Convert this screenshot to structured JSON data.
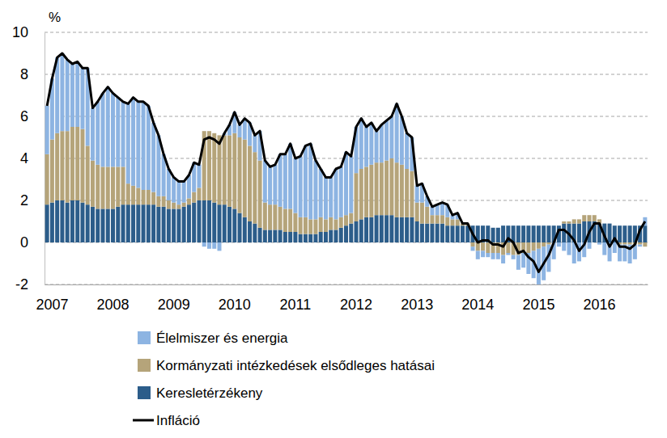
{
  "chart_data": {
    "type": "bar",
    "stacked": true,
    "grid": true,
    "legend": "bottom",
    "y_label": "%",
    "categories": [
      null,
      "2007",
      null,
      null,
      null,
      null,
      null,
      null,
      null,
      null,
      null,
      null,
      null,
      "2008",
      null,
      null,
      null,
      null,
      null,
      null,
      null,
      null,
      null,
      null,
      null,
      "2009",
      null,
      null,
      null,
      null,
      null,
      null,
      null,
      null,
      null,
      null,
      null,
      "2010",
      null,
      null,
      null,
      null,
      null,
      null,
      null,
      null,
      null,
      null,
      null,
      "2011",
      null,
      null,
      null,
      null,
      null,
      null,
      null,
      null,
      null,
      null,
      null,
      "2012",
      null,
      null,
      null,
      null,
      null,
      null,
      null,
      null,
      null,
      null,
      null,
      "2013",
      null,
      null,
      null,
      null,
      null,
      null,
      null,
      null,
      null,
      null,
      null,
      "2014",
      null,
      null,
      null,
      null,
      null,
      null,
      null,
      null,
      null,
      null,
      null,
      "2015",
      null,
      null,
      null,
      null,
      null,
      null,
      null,
      null,
      null,
      null,
      null,
      "2016",
      null,
      null,
      null,
      null,
      null,
      null,
      null,
      null,
      null
    ],
    "ylim": [
      -2,
      10
    ],
    "yticks": [
      -2,
      0,
      2,
      4,
      6,
      8,
      10
    ],
    "series": [
      {
        "name": "Élelmiszer és energia",
        "color": "#8db4e2",
        "type": "bar",
        "values": [
          2.3,
          2.9,
          3.6,
          3.7,
          3.4,
          3.0,
          3.1,
          2.9,
          3.7,
          2.5,
          3.0,
          3.5,
          3.8,
          3.5,
          3.3,
          3.1,
          3.8,
          4.2,
          4.1,
          4.2,
          4.0,
          3.3,
          2.9,
          2.0,
          1.5,
          1.2,
          1.1,
          1.0,
          1.1,
          1.4,
          1.1,
          -0.2,
          -0.3,
          -0.3,
          -0.4,
          0.1,
          0.5,
          1.0,
          0.6,
          1.0,
          1.1,
          0.8,
          1.4,
          2.0,
          1.8,
          1.9,
          2.5,
          2.6,
          3.1,
          2.6,
          2.9,
          3.4,
          3.6,
          2.8,
          2.3,
          2.0,
          1.9,
          2.4,
          2.4,
          3.0,
          2.7,
          2.2,
          2.4,
          1.9,
          2.0,
          1.5,
          1.8,
          1.9,
          2.0,
          2.8,
          2.3,
          1.7,
          1.6,
          0.8,
          0.9,
          0.5,
          0.4,
          0.5,
          0.6,
          0.6,
          0.2,
          0.3,
          0.0,
          0.0,
          -0.2,
          -0.4,
          -0.3,
          -0.2,
          -0.3,
          -0.3,
          -0.4,
          -0.1,
          -0.2,
          -0.7,
          -0.7,
          -1.0,
          -1.3,
          -1.9,
          -1.6,
          -1.3,
          -0.8,
          -0.2,
          -0.4,
          -0.6,
          -1.0,
          -0.9,
          -0.7,
          -0.3,
          0.0,
          -0.1,
          -0.6,
          -0.9,
          -0.5,
          -0.8,
          -0.8,
          -0.9,
          -0.7,
          -0.1,
          0.4
        ]
      },
      {
        "name": "Kormányzati intézkedések elsődleges hatásai",
        "color": "#b5a47a",
        "type": "bar",
        "values": [
          2.4,
          3.0,
          3.2,
          3.3,
          3.4,
          3.5,
          3.5,
          3.5,
          2.8,
          2.2,
          2.1,
          2.0,
          2.0,
          2.0,
          1.9,
          1.8,
          1.0,
          0.9,
          0.8,
          0.7,
          0.7,
          0.6,
          0.5,
          0.5,
          0.4,
          0.3,
          0.2,
          0.2,
          0.3,
          0.5,
          0.6,
          3.3,
          3.3,
          3.3,
          3.3,
          3.3,
          3.4,
          3.6,
          3.6,
          3.7,
          3.6,
          3.4,
          3.2,
          1.3,
          1.2,
          1.2,
          1.1,
          1.1,
          1.1,
          0.9,
          0.8,
          0.8,
          0.7,
          0.7,
          0.7,
          0.6,
          0.6,
          0.5,
          0.5,
          0.5,
          0.5,
          2.3,
          2.4,
          2.4,
          2.5,
          2.5,
          2.5,
          2.6,
          2.7,
          2.6,
          2.5,
          2.3,
          2.2,
          0.9,
          1.0,
          0.8,
          0.4,
          0.4,
          0.4,
          0.4,
          0.3,
          0.3,
          0.1,
          0.1,
          -0.2,
          -0.4,
          -0.4,
          -0.5,
          -0.5,
          -0.5,
          -0.6,
          -0.5,
          -0.6,
          -0.6,
          -0.5,
          -0.5,
          -0.4,
          -0.3,
          -0.2,
          -0.1,
          0.0,
          0.0,
          0.1,
          0.1,
          0.2,
          0.2,
          0.3,
          0.3,
          0.3,
          0.2,
          0.0,
          0.0,
          0.0,
          -0.1,
          -0.1,
          -0.1,
          -0.1,
          -0.1,
          -0.2
        ]
      },
      {
        "name": "Keresletérzékeny",
        "color": "#2c5d8a",
        "type": "bar",
        "values": [
          1.8,
          1.9,
          2.0,
          2.0,
          1.9,
          2.0,
          2.0,
          1.9,
          1.8,
          1.7,
          1.6,
          1.6,
          1.6,
          1.6,
          1.7,
          1.8,
          1.8,
          1.8,
          1.8,
          1.8,
          1.8,
          1.8,
          1.7,
          1.7,
          1.6,
          1.6,
          1.6,
          1.7,
          1.8,
          1.9,
          2.0,
          2.0,
          2.0,
          1.9,
          1.8,
          1.8,
          1.7,
          1.6,
          1.4,
          1.2,
          1.0,
          0.9,
          0.7,
          0.6,
          0.6,
          0.6,
          0.6,
          0.5,
          0.5,
          0.5,
          0.4,
          0.4,
          0.4,
          0.4,
          0.5,
          0.5,
          0.6,
          0.6,
          0.7,
          0.8,
          0.9,
          1.0,
          1.1,
          1.2,
          1.2,
          1.3,
          1.3,
          1.3,
          1.3,
          1.2,
          1.2,
          1.2,
          1.2,
          1.0,
          0.9,
          0.9,
          0.9,
          0.9,
          0.9,
          0.8,
          0.8,
          0.8,
          0.8,
          0.8,
          0.8,
          0.8,
          0.8,
          0.8,
          0.7,
          0.7,
          0.8,
          0.8,
          0.8,
          0.8,
          0.8,
          0.8,
          0.8,
          0.8,
          0.8,
          0.8,
          0.8,
          0.8,
          0.9,
          0.9,
          0.9,
          0.9,
          1.0,
          1.0,
          1.0,
          0.9,
          0.9,
          0.9,
          0.8,
          0.8,
          0.8,
          0.8,
          0.8,
          0.8,
          0.8
        ]
      },
      {
        "name": "Infláció",
        "color": "#000000",
        "type": "line",
        "values": [
          6.5,
          7.8,
          8.8,
          9.0,
          8.7,
          8.5,
          8.6,
          8.3,
          8.3,
          6.4,
          6.7,
          7.1,
          7.4,
          7.1,
          6.9,
          6.7,
          6.6,
          6.9,
          6.7,
          6.7,
          6.5,
          5.7,
          5.1,
          4.2,
          3.5,
          3.1,
          2.9,
          2.9,
          3.2,
          3.8,
          3.7,
          4.9,
          5.0,
          4.9,
          4.7,
          5.2,
          5.6,
          6.2,
          5.6,
          5.9,
          5.7,
          5.1,
          5.3,
          3.9,
          3.6,
          3.7,
          4.2,
          4.2,
          4.7,
          4.0,
          4.1,
          4.6,
          4.7,
          3.9,
          3.5,
          3.1,
          3.1,
          3.5,
          3.6,
          4.3,
          4.1,
          5.5,
          5.9,
          5.5,
          5.7,
          5.3,
          5.6,
          5.8,
          6.0,
          6.6,
          6.0,
          5.2,
          5.0,
          2.7,
          2.8,
          2.2,
          1.7,
          1.8,
          1.9,
          1.8,
          1.3,
          1.4,
          0.9,
          0.9,
          0.4,
          0.0,
          0.1,
          0.1,
          -0.1,
          -0.1,
          -0.2,
          0.2,
          0.0,
          -0.5,
          -0.4,
          -0.7,
          -0.9,
          -1.4,
          -1.0,
          -0.6,
          0.0,
          0.6,
          0.6,
          0.4,
          0.1,
          -0.4,
          -0.1,
          0.5,
          0.9,
          0.9,
          0.3,
          -0.2,
          0.2,
          -0.2,
          -0.2,
          -0.3,
          -0.1,
          0.6,
          1.0
        ]
      }
    ]
  }
}
